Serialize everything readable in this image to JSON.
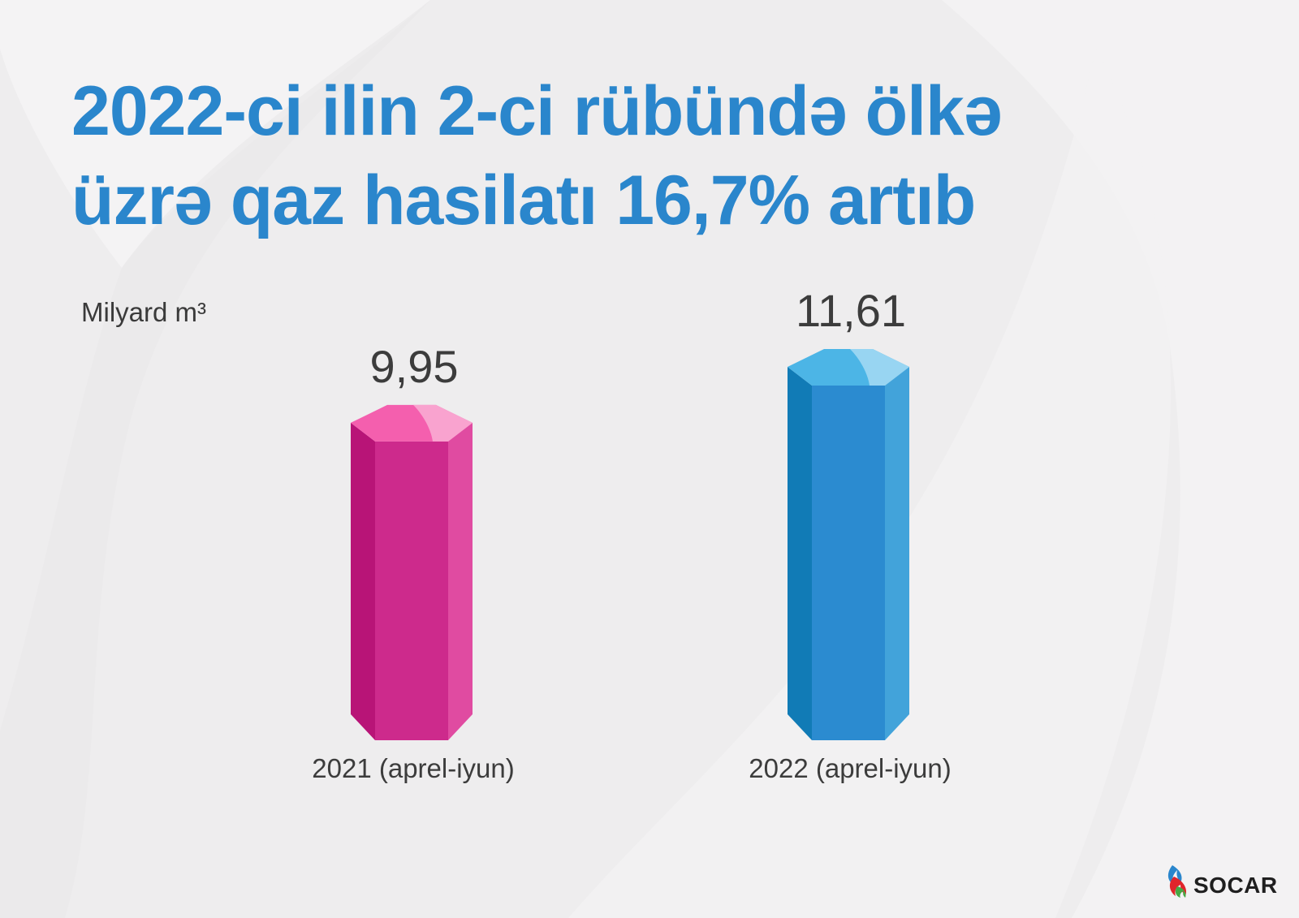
{
  "title": {
    "line1": "2022-ci ilin 2-ci rübündə ölkə",
    "line2": "üzrə qaz hasilatı 16,7% artıb"
  },
  "unit_label": "Milyard m³",
  "brand": {
    "name": "SOCAR"
  },
  "colors": {
    "title": "#2a86cc",
    "bar_2021": "#cf2a8c",
    "bar_2022": "#2b8bd0"
  },
  "chart_data": {
    "type": "bar",
    "title": "2022-ci ilin 2-ci rübündə ölkə üzrə qaz hasilatı 16,7% artıb",
    "ylabel": "Milyard m³",
    "categories": [
      "2021 (aprel-iyun)",
      "2022 (aprel-iyun)"
    ],
    "values": [
      9.95,
      11.61
    ],
    "value_labels": [
      "9,95",
      "11,61"
    ],
    "ylim": [
      0,
      12
    ]
  }
}
